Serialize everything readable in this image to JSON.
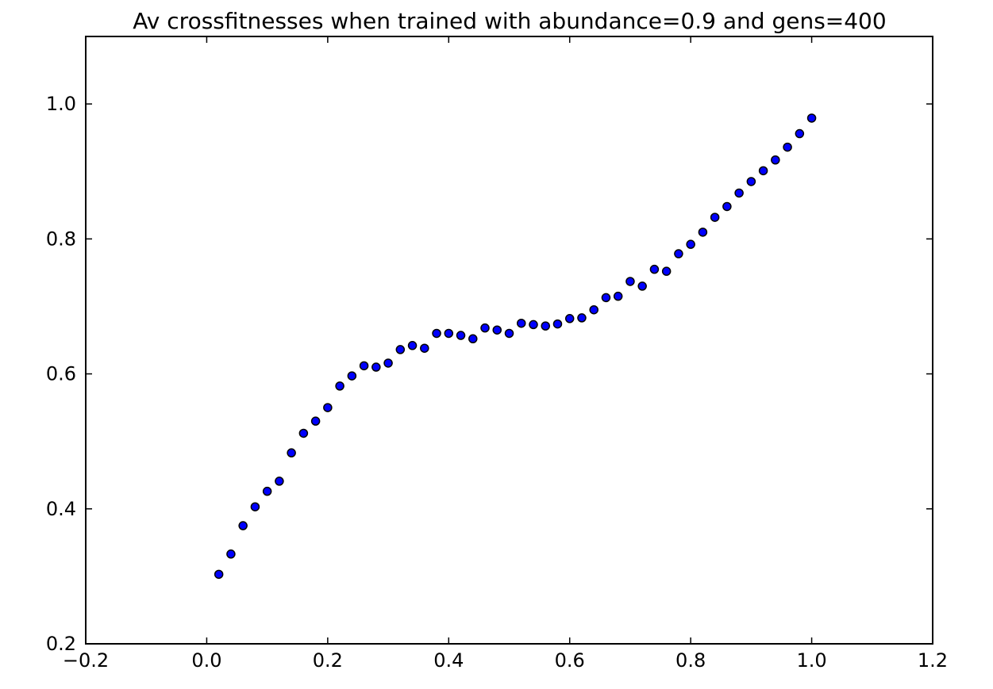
{
  "chart_data": {
    "type": "scatter",
    "title": "Av crossfitnesses when trained with abundance=0.9 and gens=400",
    "xlabel": "",
    "ylabel": "",
    "xlim": [
      -0.2,
      1.2
    ],
    "ylim": [
      0.2,
      1.1
    ],
    "x_ticks": [
      -0.2,
      0.0,
      0.2,
      0.4,
      0.6,
      0.8,
      1.0,
      1.2
    ],
    "x_tick_labels": [
      "−0.2",
      "0.0",
      "0.2",
      "0.4",
      "0.6",
      "0.8",
      "1.0",
      "1.2"
    ],
    "y_ticks": [
      0.2,
      0.4,
      0.6,
      0.8,
      1.0
    ],
    "y_tick_labels": [
      "0.2",
      "0.4",
      "0.6",
      "0.8",
      "1.0"
    ],
    "grid": false,
    "marker_color": "#0000ff",
    "marker_edge_color": "#000000",
    "series": [
      {
        "x": [
          0.02,
          0.04,
          0.06,
          0.08,
          0.1,
          0.12,
          0.14,
          0.16,
          0.18,
          0.2,
          0.22,
          0.24,
          0.26,
          0.28,
          0.3,
          0.32,
          0.34,
          0.36,
          0.38,
          0.4,
          0.42,
          0.44,
          0.46,
          0.48,
          0.5,
          0.52,
          0.54,
          0.56,
          0.58,
          0.6,
          0.62,
          0.64,
          0.66,
          0.68,
          0.7,
          0.72,
          0.74,
          0.76,
          0.78,
          0.8,
          0.82,
          0.84,
          0.86,
          0.88,
          0.9,
          0.92,
          0.94,
          0.96,
          0.98,
          1.0
        ],
        "y": [
          0.303,
          0.333,
          0.375,
          0.403,
          0.426,
          0.441,
          0.483,
          0.512,
          0.53,
          0.55,
          0.582,
          0.597,
          0.612,
          0.61,
          0.616,
          0.636,
          0.642,
          0.638,
          0.66,
          0.66,
          0.657,
          0.652,
          0.668,
          0.665,
          0.66,
          0.675,
          0.673,
          0.671,
          0.674,
          0.682,
          0.683,
          0.695,
          0.713,
          0.715,
          0.737,
          0.73,
          0.755,
          0.752,
          0.778,
          0.792,
          0.81,
          0.832,
          0.848,
          0.868,
          0.885,
          0.901,
          0.917,
          0.936,
          0.956,
          0.979
        ]
      }
    ]
  }
}
